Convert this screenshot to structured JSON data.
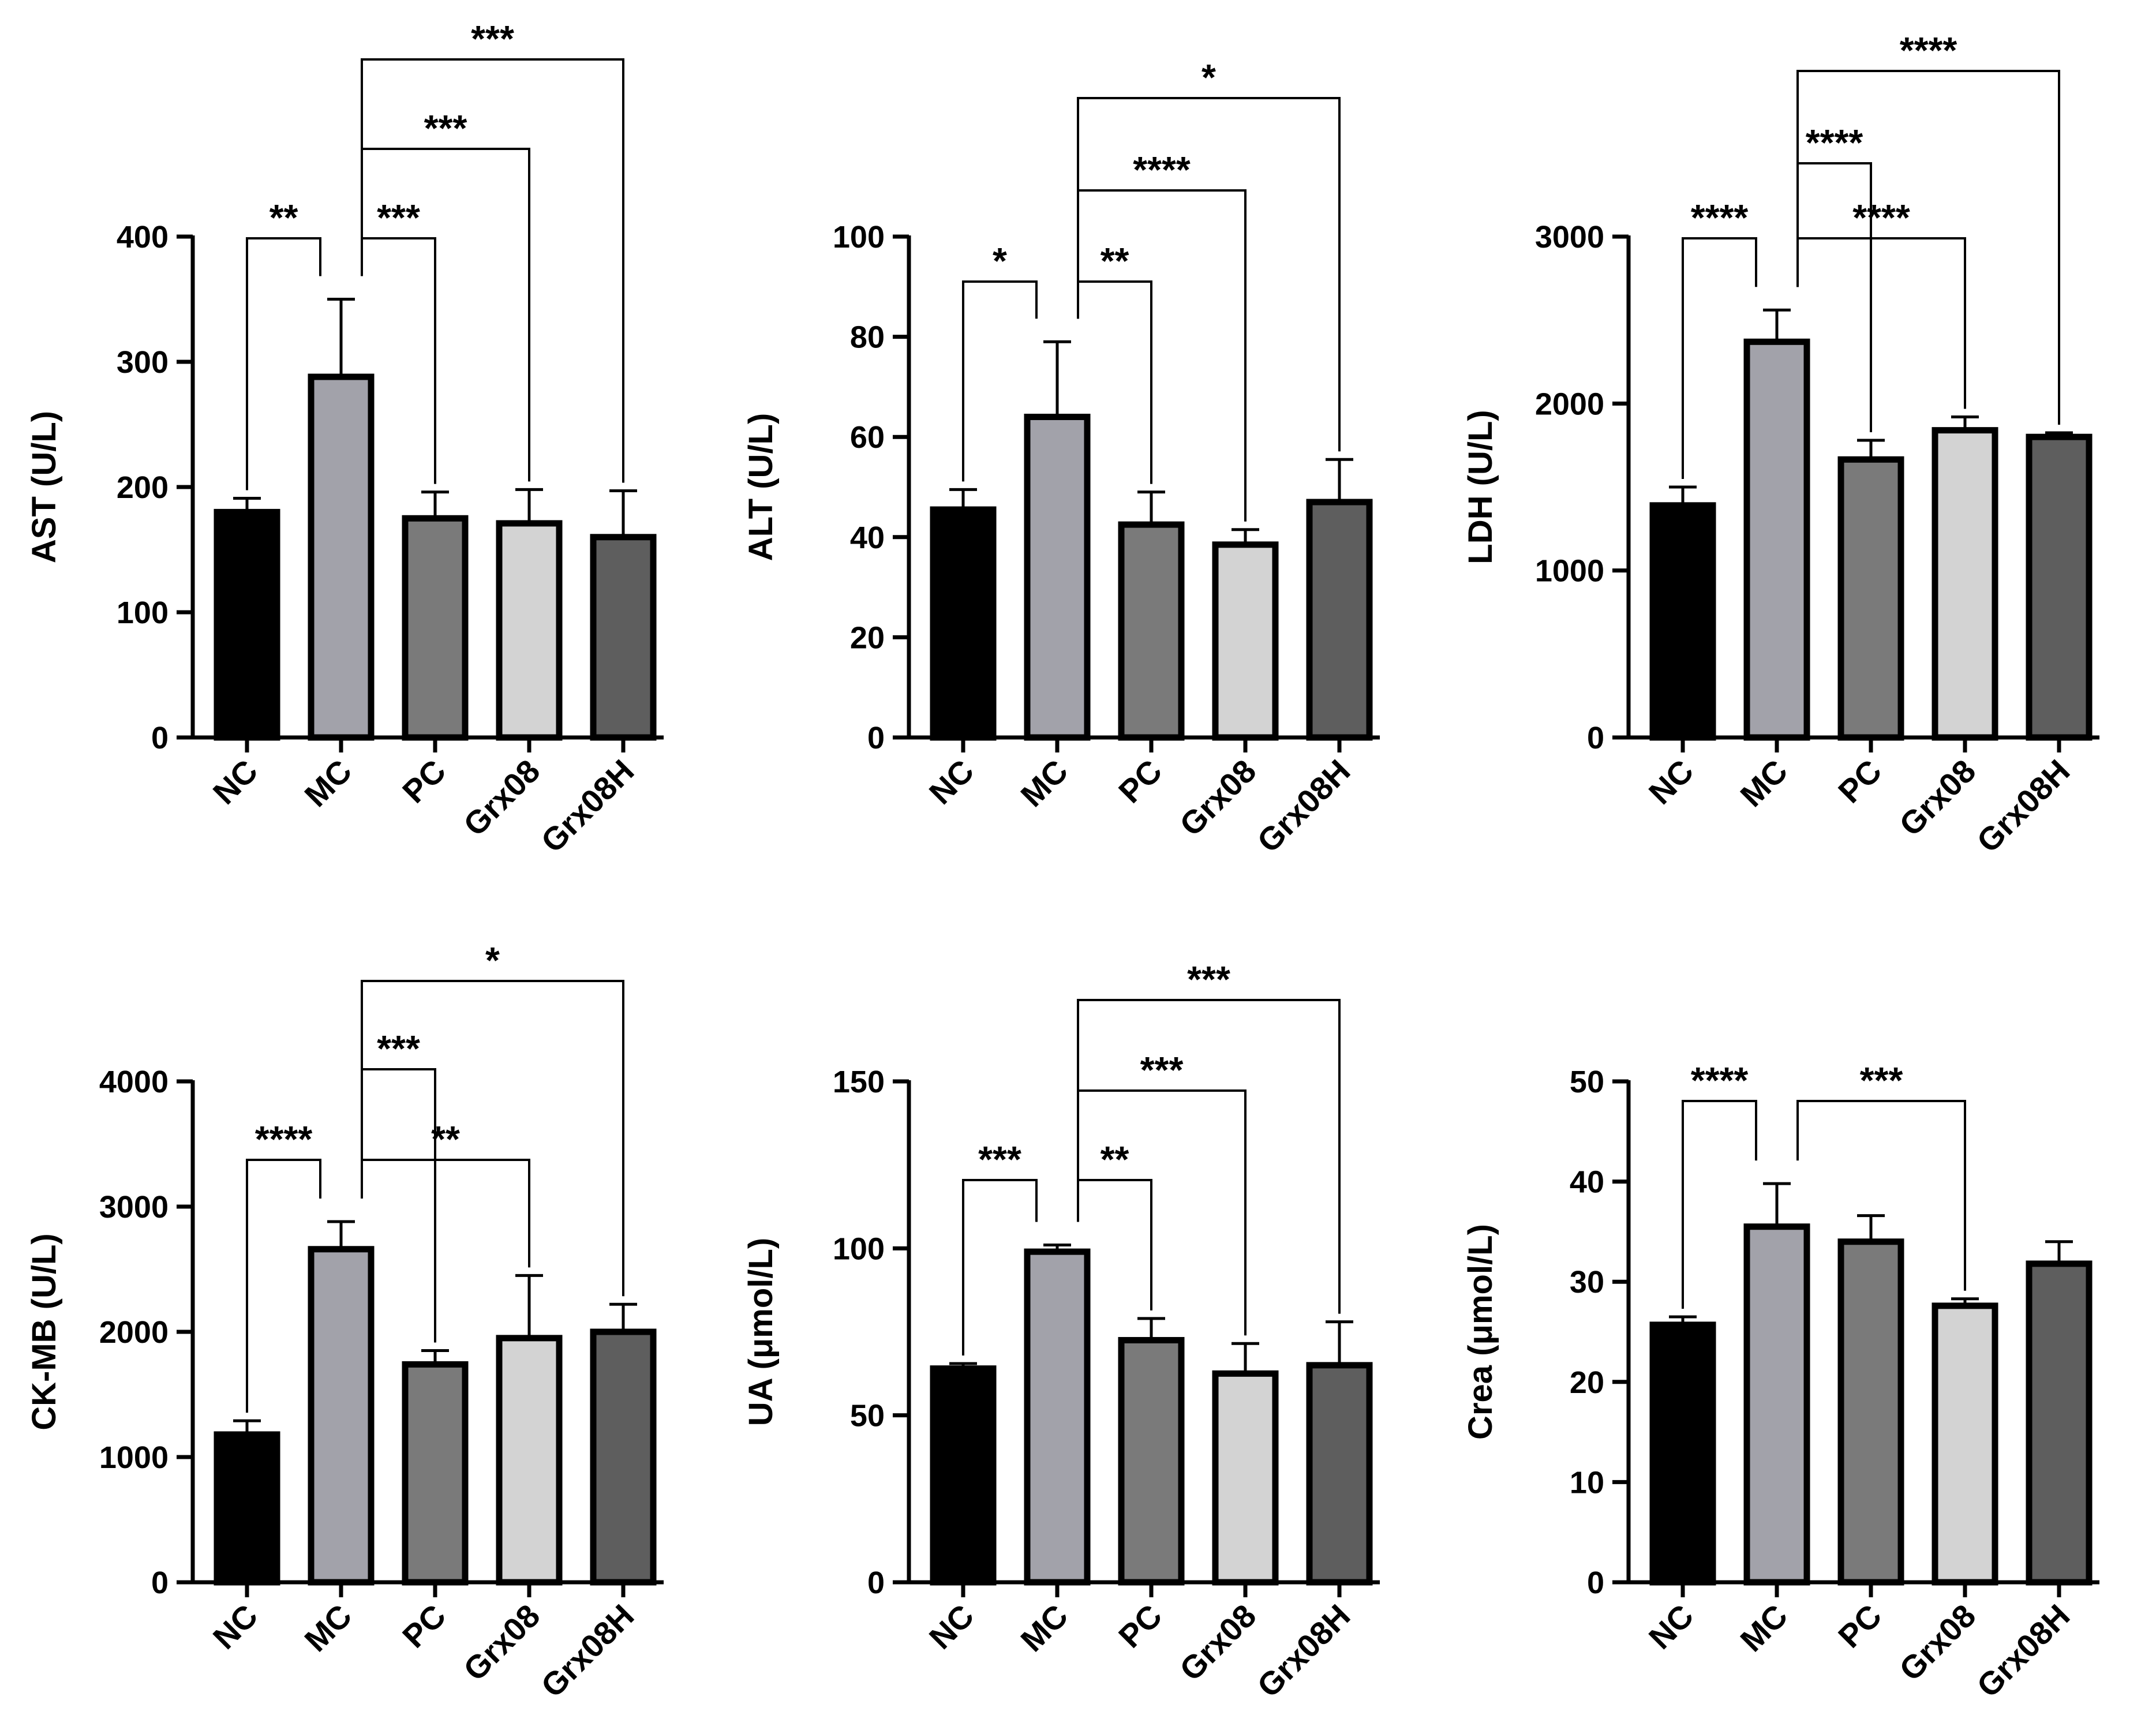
{
  "figure": {
    "categories": [
      "NC",
      "MC",
      "PC",
      "Grx08",
      "Grx08H"
    ],
    "colors": {
      "bar_fills": [
        "#000000",
        "#a2a2aa",
        "#7a7a7a",
        "#d3d3d3",
        "#5e5e5e"
      ],
      "outline": "#000000",
      "bracket": "#000000"
    }
  },
  "chart_data": [
    {
      "type": "bar",
      "id": "ast",
      "title": "",
      "xlabel": "",
      "ylabel": "AST (U/L)",
      "ylim": [
        0,
        400
      ],
      "yticks": [
        0,
        100,
        200,
        300,
        400
      ],
      "tick_labels": [
        "0",
        "100",
        "200",
        "300",
        "400"
      ],
      "categories": [
        "NC",
        "MC",
        "PC",
        "Grx08",
        "Grx08H"
      ],
      "values": [
        180,
        288,
        175,
        171,
        160
      ],
      "errors": [
        11,
        62,
        21,
        27,
        37
      ],
      "significance": [
        {
          "from": 0,
          "to": 1,
          "label": "**"
        },
        {
          "from": 1,
          "to": 2,
          "label": "***"
        },
        {
          "from": 1,
          "to": 3,
          "label": "***"
        },
        {
          "from": 1,
          "to": 4,
          "label": "***"
        }
      ]
    },
    {
      "type": "bar",
      "id": "alt",
      "title": "",
      "xlabel": "",
      "ylabel": "ALT (U/L)",
      "ylim": [
        0,
        100
      ],
      "yticks": [
        0,
        20,
        40,
        60,
        80,
        100
      ],
      "tick_labels": [
        "0",
        "20",
        "40",
        "60",
        "80",
        "100"
      ],
      "categories": [
        "NC",
        "MC",
        "PC",
        "Grx08",
        "Grx08H"
      ],
      "values": [
        45.5,
        64,
        42.5,
        38.5,
        47
      ],
      "errors": [
        4,
        15,
        6.5,
        3,
        8.5
      ],
      "significance": [
        {
          "from": 0,
          "to": 1,
          "label": "*"
        },
        {
          "from": 1,
          "to": 2,
          "label": "**"
        },
        {
          "from": 1,
          "to": 3,
          "label": "****"
        },
        {
          "from": 1,
          "to": 4,
          "label": "*"
        }
      ]
    },
    {
      "type": "bar",
      "id": "ldh",
      "title": "",
      "xlabel": "",
      "ylabel": "LDH (U/L)",
      "ylim": [
        0,
        3000
      ],
      "yticks": [
        0,
        1000,
        2000,
        3000
      ],
      "tick_labels": [
        "0",
        "1000",
        "2000",
        "3000"
      ],
      "categories": [
        "NC",
        "MC",
        "PC",
        "Grx08",
        "Grx08H"
      ],
      "values": [
        1390,
        2370,
        1665,
        1840,
        1800
      ],
      "errors": [
        110,
        190,
        115,
        80,
        25
      ],
      "significance": [
        {
          "from": 0,
          "to": 1,
          "label": "****"
        },
        {
          "from": 1,
          "to": 3,
          "label": "****"
        },
        {
          "from": 1,
          "to": 2,
          "label": "****"
        },
        {
          "from": 1,
          "to": 4,
          "label": "****"
        }
      ]
    },
    {
      "type": "bar",
      "id": "ckmb",
      "title": "",
      "xlabel": "",
      "ylabel": "CK-MB (U/L)",
      "ylim": [
        0,
        4000
      ],
      "yticks": [
        0,
        1000,
        2000,
        3000,
        4000
      ],
      "tick_labels": [
        "0",
        "1000",
        "2000",
        "3000",
        "4000"
      ],
      "categories": [
        "NC",
        "MC",
        "PC",
        "Grx08",
        "Grx08H"
      ],
      "values": [
        1180,
        2660,
        1740,
        1950,
        2000
      ],
      "errors": [
        110,
        220,
        110,
        500,
        220
      ],
      "significance": [
        {
          "from": 0,
          "to": 1,
          "label": "****"
        },
        {
          "from": 1,
          "to": 3,
          "label": "**"
        },
        {
          "from": 1,
          "to": 2,
          "label": "***"
        },
        {
          "from": 1,
          "to": 4,
          "label": "*"
        }
      ]
    },
    {
      "type": "bar",
      "id": "ua",
      "title": "",
      "xlabel": "",
      "ylabel": "UA (μmol/L)",
      "ylim": [
        0,
        150
      ],
      "yticks": [
        0,
        50,
        100,
        150
      ],
      "tick_labels": [
        "0",
        "50",
        "100",
        "150"
      ],
      "categories": [
        "NC",
        "MC",
        "PC",
        "Grx08",
        "Grx08H"
      ],
      "values": [
        64,
        99,
        72.5,
        62.5,
        65
      ],
      "errors": [
        1.5,
        2,
        6.5,
        9,
        13
      ],
      "significance": [
        {
          "from": 0,
          "to": 1,
          "label": "***"
        },
        {
          "from": 1,
          "to": 2,
          "label": "**"
        },
        {
          "from": 1,
          "to": 3,
          "label": "***"
        },
        {
          "from": 1,
          "to": 4,
          "label": "***"
        }
      ]
    },
    {
      "type": "bar",
      "id": "crea",
      "title": "",
      "xlabel": "",
      "ylabel": "Crea (μmol/L)",
      "ylim": [
        0,
        50
      ],
      "yticks": [
        0,
        10,
        20,
        30,
        40,
        50
      ],
      "tick_labels": [
        "0",
        "10",
        "20",
        "30",
        "40",
        "50"
      ],
      "categories": [
        "NC",
        "MC",
        "PC",
        "Grx08",
        "Grx08H"
      ],
      "values": [
        25.7,
        35.5,
        34,
        27.6,
        31.8
      ],
      "errors": [
        0.8,
        4.3,
        2.6,
        0.7,
        2.2
      ],
      "significance": [
        {
          "from": 0,
          "to": 1,
          "label": "****"
        },
        {
          "from": 1,
          "to": 3,
          "label": "***"
        }
      ]
    }
  ]
}
